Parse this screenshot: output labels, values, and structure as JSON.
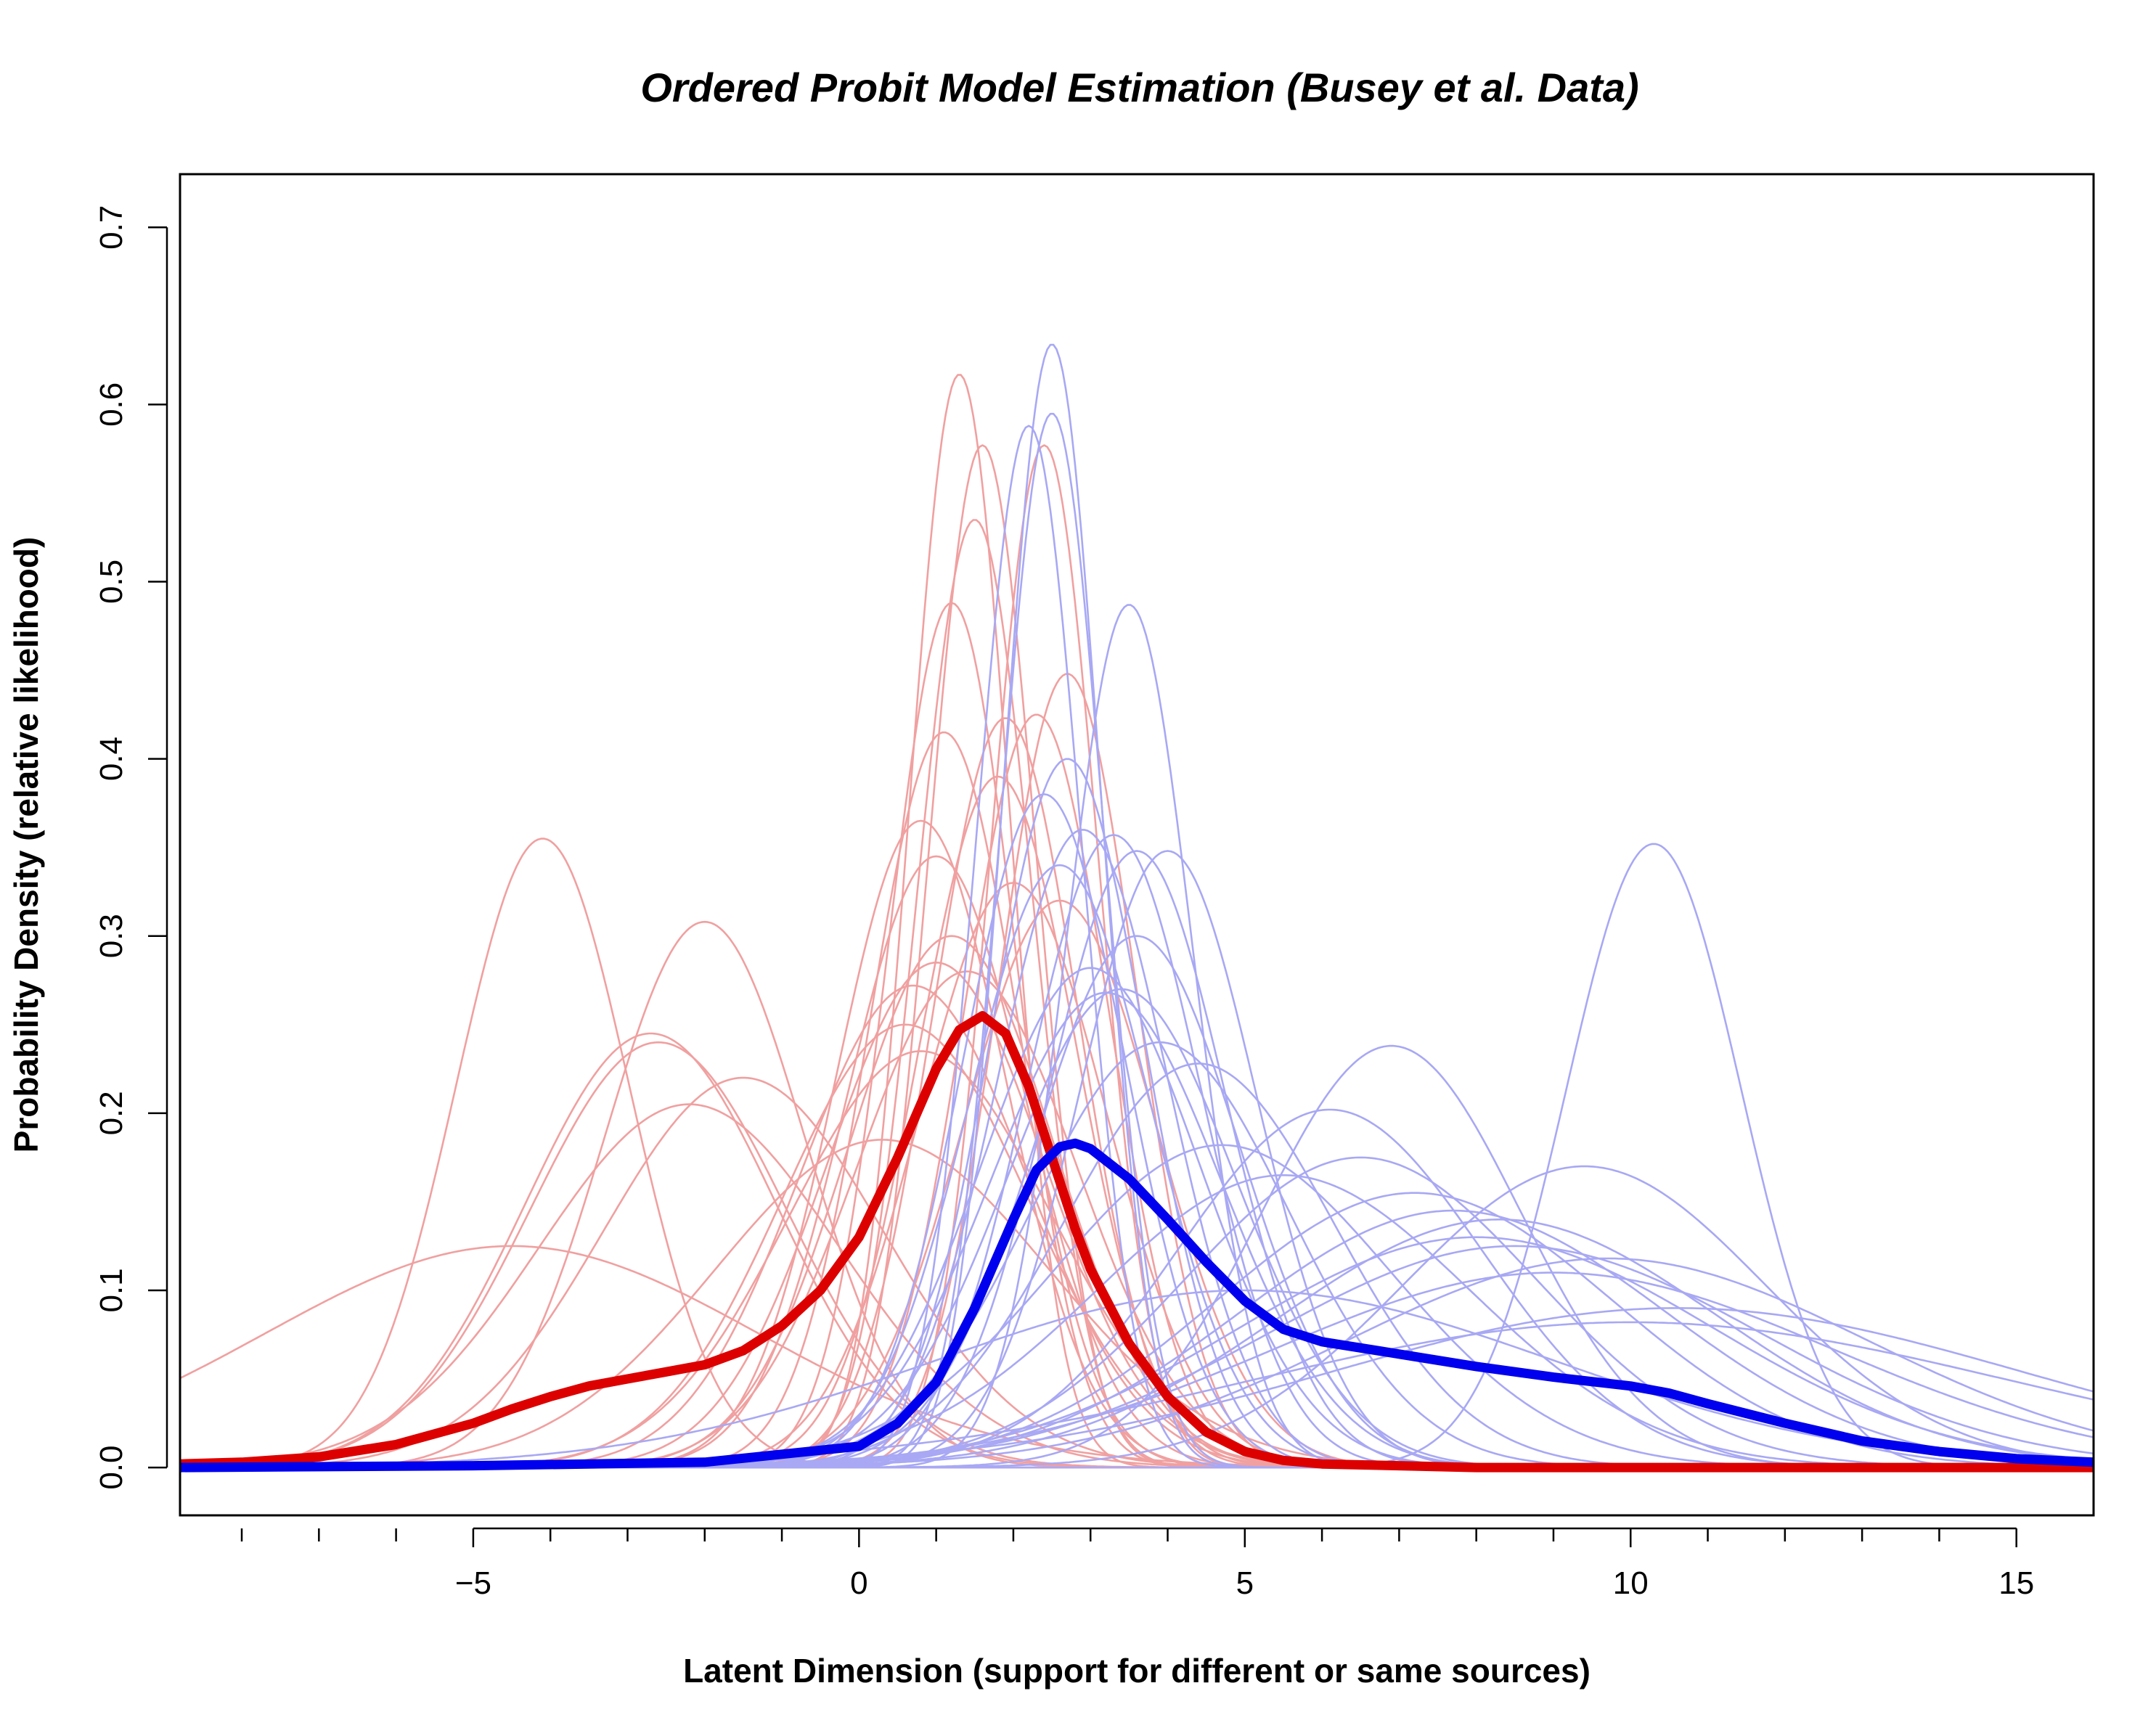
{
  "chart_data": {
    "type": "line",
    "title": "Ordered Probit Model Estimation (Busey et al. Data)",
    "xlabel": "Latent Dimension (support for different or same sources)",
    "ylabel": "Probability Density (relative likelihood)",
    "xlim": [
      -8.8,
      16.0
    ],
    "ylim": [
      -0.027,
      0.73
    ],
    "x_ticks": [
      -5,
      0,
      5,
      10,
      15
    ],
    "x_tick_labels": [
      "−5",
      "0",
      "5",
      "10",
      "15"
    ],
    "x_minor_ticks": [
      -8,
      -7,
      -6,
      -4,
      -3,
      -2,
      -1,
      1,
      2,
      3,
      4,
      6,
      7,
      8,
      9,
      11,
      12,
      13,
      14
    ],
    "y_ticks": [
      0.0,
      0.1,
      0.2,
      0.3,
      0.4,
      0.5,
      0.6,
      0.7
    ],
    "y_tick_labels": [
      "0.0",
      "0.1",
      "0.2",
      "0.3",
      "0.4",
      "0.5",
      "0.6",
      "0.7"
    ],
    "grid": false,
    "colors": {
      "different_sources": "#dd0000",
      "same_sources": "#0000ee",
      "different_faint": "#f0a0a0",
      "same_faint": "#a8a8f4"
    },
    "series": [
      {
        "group": "different_sources",
        "style": "thick",
        "x": [
          -8.8,
          -8,
          -7,
          -6,
          -5,
          -4.5,
          -4,
          -3.5,
          -3,
          -2.5,
          -2,
          -1.5,
          -1,
          -0.5,
          0,
          0.5,
          1,
          1.3,
          1.6,
          1.9,
          2.2,
          2.5,
          2.8,
          3,
          3.5,
          4,
          4.5,
          5,
          5.5,
          6,
          7,
          8,
          10,
          12,
          14,
          16
        ],
        "y": [
          0.002,
          0.003,
          0.006,
          0.013,
          0.025,
          0.033,
          0.04,
          0.046,
          0.05,
          0.054,
          0.058,
          0.066,
          0.08,
          0.1,
          0.13,
          0.175,
          0.225,
          0.247,
          0.255,
          0.245,
          0.215,
          0.175,
          0.135,
          0.112,
          0.07,
          0.04,
          0.02,
          0.009,
          0.004,
          0.002,
          0.001,
          0.0,
          0.0,
          0.0,
          0.0,
          0.0
        ]
      },
      {
        "group": "same_sources",
        "style": "thick",
        "x": [
          -8.8,
          -5,
          -2,
          0,
          0.5,
          1,
          1.5,
          2,
          2.3,
          2.6,
          2.8,
          3,
          3.5,
          4,
          4.5,
          5,
          5.5,
          6,
          7,
          8,
          9,
          10,
          10.5,
          11,
          12,
          13,
          14,
          15,
          16
        ],
        "y": [
          0.0,
          0.001,
          0.003,
          0.012,
          0.025,
          0.048,
          0.09,
          0.14,
          0.168,
          0.181,
          0.183,
          0.18,
          0.163,
          0.14,
          0.116,
          0.094,
          0.078,
          0.071,
          0.064,
          0.057,
          0.051,
          0.046,
          0.042,
          0.036,
          0.025,
          0.015,
          0.009,
          0.005,
          0.003
        ]
      },
      {
        "group": "different_sources",
        "style": "faint",
        "mean": -4.5,
        "peak": 0.125
      },
      {
        "group": "different_sources",
        "style": "faint",
        "mean": -4.1,
        "peak": 0.355
      },
      {
        "group": "different_sources",
        "style": "faint",
        "mean": -2.7,
        "peak": 0.245
      },
      {
        "group": "different_sources",
        "style": "faint",
        "mean": -2.6,
        "peak": 0.24
      },
      {
        "group": "different_sources",
        "style": "faint",
        "mean": -2.0,
        "peak": 0.308
      },
      {
        "group": "different_sources",
        "style": "faint",
        "mean": -2.2,
        "peak": 0.205
      },
      {
        "group": "different_sources",
        "style": "faint",
        "mean": -1.5,
        "peak": 0.22
      },
      {
        "group": "different_sources",
        "style": "faint",
        "mean": 0.3,
        "peak": 0.185
      },
      {
        "group": "different_sources",
        "style": "faint",
        "mean": 0.6,
        "peak": 0.25
      },
      {
        "group": "different_sources",
        "style": "faint",
        "mean": 0.7,
        "peak": 0.272
      },
      {
        "group": "different_sources",
        "style": "faint",
        "mean": 0.8,
        "peak": 0.365
      },
      {
        "group": "different_sources",
        "style": "faint",
        "mean": 0.8,
        "peak": 0.235
      },
      {
        "group": "different_sources",
        "style": "faint",
        "mean": 1.0,
        "peak": 0.285
      },
      {
        "group": "different_sources",
        "style": "faint",
        "mean": 1.0,
        "peak": 0.345
      },
      {
        "group": "different_sources",
        "style": "faint",
        "mean": 1.1,
        "peak": 0.415
      },
      {
        "group": "different_sources",
        "style": "faint",
        "mean": 1.2,
        "peak": 0.488
      },
      {
        "group": "different_sources",
        "style": "faint",
        "mean": 1.2,
        "peak": 0.3
      },
      {
        "group": "different_sources",
        "style": "faint",
        "mean": 1.3,
        "peak": 0.617
      },
      {
        "group": "different_sources",
        "style": "faint",
        "mean": 1.5,
        "peak": 0.535
      },
      {
        "group": "different_sources",
        "style": "faint",
        "mean": 1.6,
        "peak": 0.577
      },
      {
        "group": "different_sources",
        "style": "faint",
        "mean": 1.4,
        "peak": 0.28
      },
      {
        "group": "different_sources",
        "style": "faint",
        "mean": 1.8,
        "peak": 0.39
      },
      {
        "group": "different_sources",
        "style": "faint",
        "mean": 1.9,
        "peak": 0.423
      },
      {
        "group": "different_sources",
        "style": "faint",
        "mean": 2.0,
        "peak": 0.33
      },
      {
        "group": "different_sources",
        "style": "faint",
        "mean": 2.3,
        "peak": 0.425
      },
      {
        "group": "different_sources",
        "style": "faint",
        "mean": 2.4,
        "peak": 0.577
      },
      {
        "group": "different_sources",
        "style": "faint",
        "mean": 2.6,
        "peak": 0.32
      },
      {
        "group": "different_sources",
        "style": "faint",
        "mean": 2.7,
        "peak": 0.448
      },
      {
        "group": "same_sources",
        "style": "faint",
        "mean": 2.2,
        "peak": 0.588
      },
      {
        "group": "same_sources",
        "style": "faint",
        "mean": 2.5,
        "peak": 0.634
      },
      {
        "group": "same_sources",
        "style": "faint",
        "mean": 2.5,
        "peak": 0.595
      },
      {
        "group": "same_sources",
        "style": "faint",
        "mean": 2.4,
        "peak": 0.38
      },
      {
        "group": "same_sources",
        "style": "faint",
        "mean": 2.6,
        "peak": 0.34
      },
      {
        "group": "same_sources",
        "style": "faint",
        "mean": 2.7,
        "peak": 0.4
      },
      {
        "group": "same_sources",
        "style": "faint",
        "mean": 2.9,
        "peak": 0.36
      },
      {
        "group": "same_sources",
        "style": "faint",
        "mean": 3.0,
        "peak": 0.282
      },
      {
        "group": "same_sources",
        "style": "faint",
        "mean": 3.2,
        "peak": 0.268
      },
      {
        "group": "same_sources",
        "style": "faint",
        "mean": 3.3,
        "peak": 0.357
      },
      {
        "group": "same_sources",
        "style": "faint",
        "mean": 3.4,
        "peak": 0.27
      },
      {
        "group": "same_sources",
        "style": "faint",
        "mean": 3.5,
        "peak": 0.487
      },
      {
        "group": "same_sources",
        "style": "faint",
        "mean": 3.6,
        "peak": 0.348
      },
      {
        "group": "same_sources",
        "style": "faint",
        "mean": 3.6,
        "peak": 0.3
      },
      {
        "group": "same_sources",
        "style": "faint",
        "mean": 3.9,
        "peak": 0.24
      },
      {
        "group": "same_sources",
        "style": "faint",
        "mean": 4.0,
        "peak": 0.348
      },
      {
        "group": "same_sources",
        "style": "faint",
        "mean": 4.4,
        "peak": 0.228
      },
      {
        "group": "same_sources",
        "style": "faint",
        "mean": 4.7,
        "peak": 0.182
      },
      {
        "group": "same_sources",
        "style": "faint",
        "mean": 5.0,
        "peak": 0.1
      },
      {
        "group": "same_sources",
        "style": "faint",
        "mean": 5.5,
        "peak": 0.165
      },
      {
        "group": "same_sources",
        "style": "faint",
        "mean": 6.1,
        "peak": 0.202
      },
      {
        "group": "same_sources",
        "style": "faint",
        "mean": 6.5,
        "peak": 0.175
      },
      {
        "group": "same_sources",
        "style": "faint",
        "mean": 6.9,
        "peak": 0.238
      },
      {
        "group": "same_sources",
        "style": "faint",
        "mean": 7.2,
        "peak": 0.155
      },
      {
        "group": "same_sources",
        "style": "faint",
        "mean": 7.7,
        "peak": 0.145
      },
      {
        "group": "same_sources",
        "style": "faint",
        "mean": 8.0,
        "peak": 0.13
      },
      {
        "group": "same_sources",
        "style": "faint",
        "mean": 8.3,
        "peak": 0.14
      },
      {
        "group": "same_sources",
        "style": "faint",
        "mean": 8.5,
        "peak": 0.125
      },
      {
        "group": "same_sources",
        "style": "faint",
        "mean": 9.0,
        "peak": 0.11
      },
      {
        "group": "same_sources",
        "style": "faint",
        "mean": 9.4,
        "peak": 0.17
      },
      {
        "group": "same_sources",
        "style": "faint",
        "mean": 10.0,
        "peak": 0.082
      },
      {
        "group": "same_sources",
        "style": "faint",
        "mean": 10.3,
        "peak": 0.352
      },
      {
        "group": "same_sources",
        "style": "faint",
        "mean": 9.7,
        "peak": 0.118
      },
      {
        "group": "same_sources",
        "style": "faint",
        "mean": 10.6,
        "peak": 0.09
      }
    ]
  }
}
